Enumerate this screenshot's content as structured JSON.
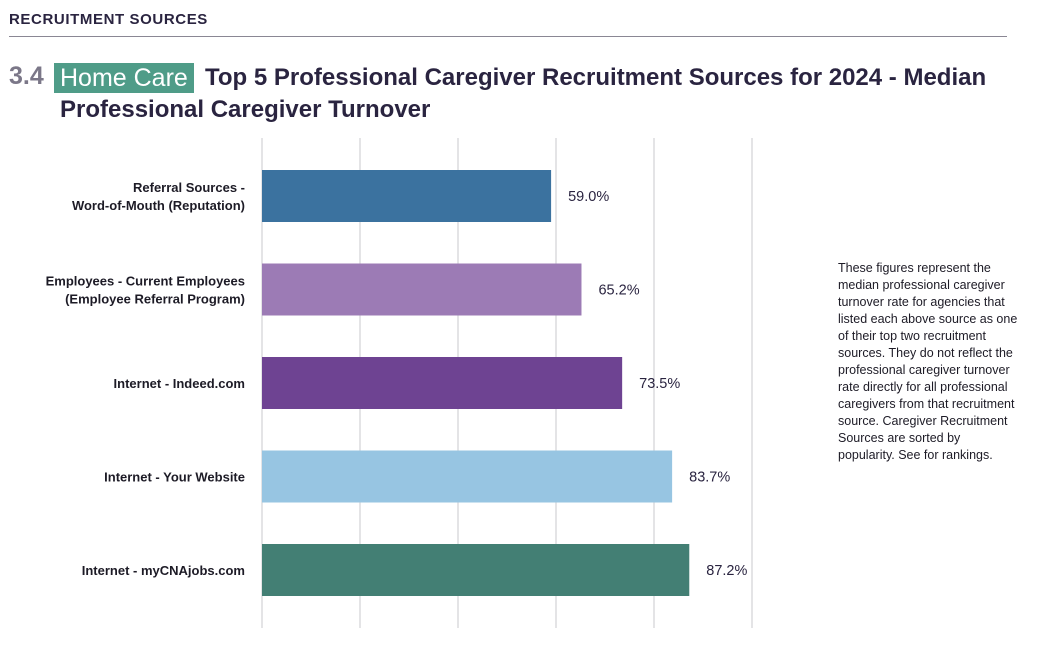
{
  "header": {
    "section_label": "RECRUITMENT SOURCES",
    "number": "3.4",
    "tag": "Home Care",
    "title": "Top 5 Professional Caregiver Recruitment Sources for 2024 - Median Professional Caregiver Turnover"
  },
  "note": "These figures represent the median professional caregiver turnover rate for agencies that listed each above source as one of their top two recruitment sources. They do not reflect the professional caregiver turnover rate directly for all professional caregivers from that recruitment source. Caregiver Recruitment Sources are sorted by popularity. See for rankings.",
  "chart_data": {
    "type": "bar",
    "orientation": "horizontal",
    "title": "Top 5 Professional Caregiver Recruitment Sources for 2024 - Median Professional Caregiver Turnover",
    "categories": [
      [
        "Referral Sources -",
        "Word-of-Mouth (Reputation)"
      ],
      [
        "Employees - Current Employees",
        "(Employee Referral Program)"
      ],
      [
        "Internet - Indeed.com"
      ],
      [
        "Internet - Your Website"
      ],
      [
        "Internet - myCNAjobs.com"
      ]
    ],
    "values": [
      59.0,
      65.2,
      73.5,
      83.7,
      87.2
    ],
    "value_labels": [
      "59.0%",
      "65.2%",
      "73.5%",
      "83.7%",
      "87.2%"
    ],
    "colors": [
      "#3b729f",
      "#9c7bb5",
      "#6e4392",
      "#97c5e2",
      "#437f74"
    ],
    "xlim": [
      0,
      100
    ],
    "grid": true,
    "axis_tick_labels": false
  }
}
